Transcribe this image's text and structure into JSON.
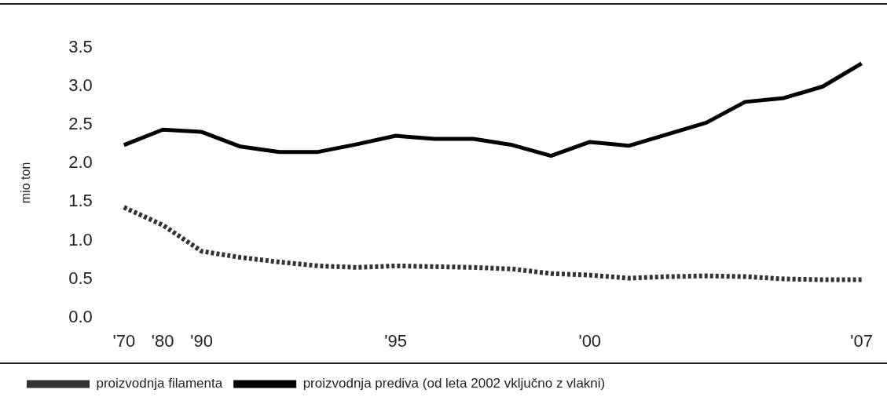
{
  "chart_data": {
    "type": "line",
    "ylabel": "mio ton",
    "categories": [
      "'70",
      "'80",
      "'90",
      null,
      null,
      null,
      null,
      "'95",
      null,
      null,
      null,
      null,
      "'00",
      null,
      null,
      null,
      null,
      null,
      null,
      "'07"
    ],
    "series": [
      {
        "name": "proizvodnja filamenta",
        "color": "#333333",
        "line_style": "dashed",
        "values": [
          1.43,
          1.2,
          0.86,
          0.78,
          0.72,
          0.67,
          0.65,
          0.67,
          0.66,
          0.65,
          0.63,
          0.57,
          0.55,
          0.51,
          0.53,
          0.54,
          0.53,
          0.5,
          0.49,
          0.49
        ]
      },
      {
        "name": "proizvodnja prediva (od leta 2002 vključno z vlakni)",
        "color": "#000000",
        "line_style": "solid",
        "values": [
          2.24,
          2.44,
          2.41,
          2.22,
          2.15,
          2.15,
          2.25,
          2.36,
          2.32,
          2.32,
          2.24,
          2.1,
          2.28,
          2.23,
          2.38,
          2.53,
          2.8,
          2.85,
          3.0,
          3.3
        ]
      }
    ],
    "ylim": [
      0,
      3.5
    ],
    "yticks": [
      {
        "value": 0,
        "label": "0.0"
      },
      {
        "value": 0.5,
        "label": "0.5"
      },
      {
        "value": 1,
        "label": "1.0"
      },
      {
        "value": 1.5,
        "label": "1.5"
      },
      {
        "value": 2,
        "label": "2.0"
      },
      {
        "value": 2.5,
        "label": "2.5"
      },
      {
        "value": 3,
        "label": "3.0"
      },
      {
        "value": 3.5,
        "label": "3.5"
      }
    ],
    "grid": false,
    "legend": "bottom",
    "marker": "none"
  }
}
